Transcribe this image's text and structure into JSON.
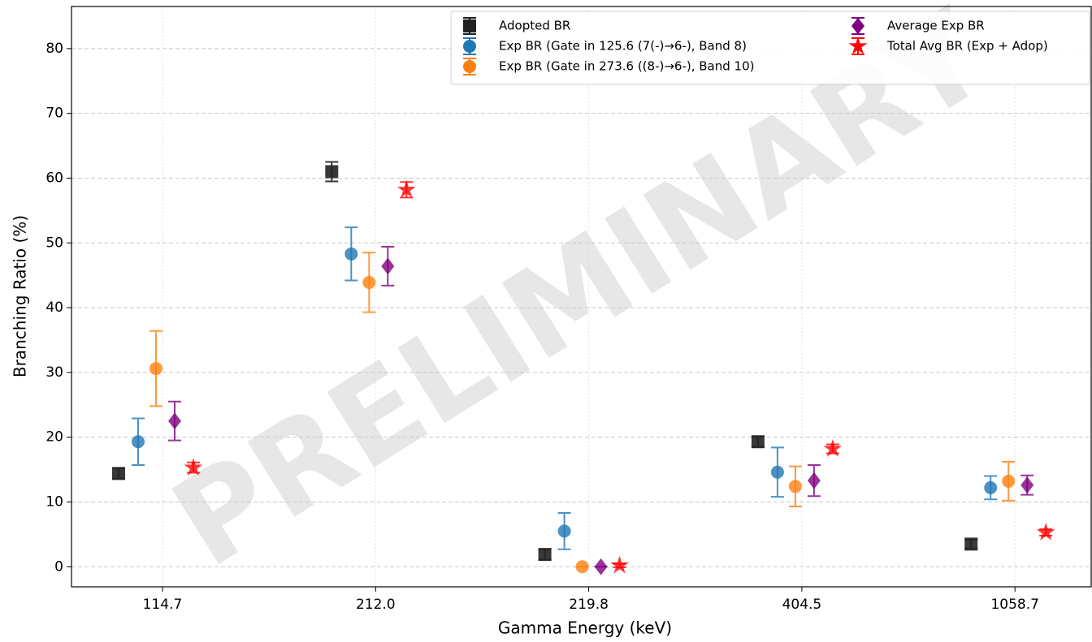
{
  "chart_data": {
    "type": "errorbar",
    "watermark": "PRELIMINARY",
    "x_label": "Gamma Energy (keV)",
    "y_label": "Branching Ratio (%)",
    "categories": [
      "114.7",
      "212.0",
      "219.8",
      "404.5",
      "1058.7"
    ],
    "ylim": [
      -3.1,
      86.5
    ],
    "yticks": [
      0,
      10,
      20,
      30,
      40,
      50,
      60,
      70,
      80
    ],
    "grid": true,
    "legend": "upper right",
    "series": [
      {
        "name": "Adopted BR",
        "color": "#222222",
        "marker": "square",
        "values": [
          14.4,
          61.0,
          1.9,
          19.3,
          3.5
        ],
        "errors": [
          0.8,
          1.5,
          0.8,
          0.8,
          0.7
        ]
      },
      {
        "name": "Exp BR (Gate in 125.6 (7(-)→6-), Band 8)",
        "color": "#1f77b4",
        "marker": "circle",
        "values": [
          19.3,
          48.3,
          5.5,
          14.6,
          12.2
        ],
        "errors": [
          3.6,
          4.1,
          2.8,
          3.8,
          1.8
        ]
      },
      {
        "name": "Exp BR (Gate in 273.6 ((8-)→6-), Band 10)",
        "color": "#ff7f0e",
        "marker": "circle",
        "values": [
          30.6,
          43.9,
          0,
          12.4,
          13.2
        ],
        "errors": [
          5.8,
          4.6,
          0,
          3.1,
          3.0
        ]
      },
      {
        "name": "Average Exp BR",
        "color": "#800080",
        "marker": "diamond",
        "values": [
          22.5,
          46.4,
          0,
          13.3,
          12.6
        ],
        "errors": [
          3.0,
          3.0,
          0,
          2.4,
          1.5
        ]
      },
      {
        "name": "Total Avg BR (Exp + Adop)",
        "color": "#ff0000",
        "marker": "star",
        "values": [
          15.3,
          58.2,
          0.2,
          18.2,
          5.3
        ],
        "errors": [
          0.8,
          1.2,
          0.3,
          0.7,
          0.5
        ]
      }
    ]
  }
}
